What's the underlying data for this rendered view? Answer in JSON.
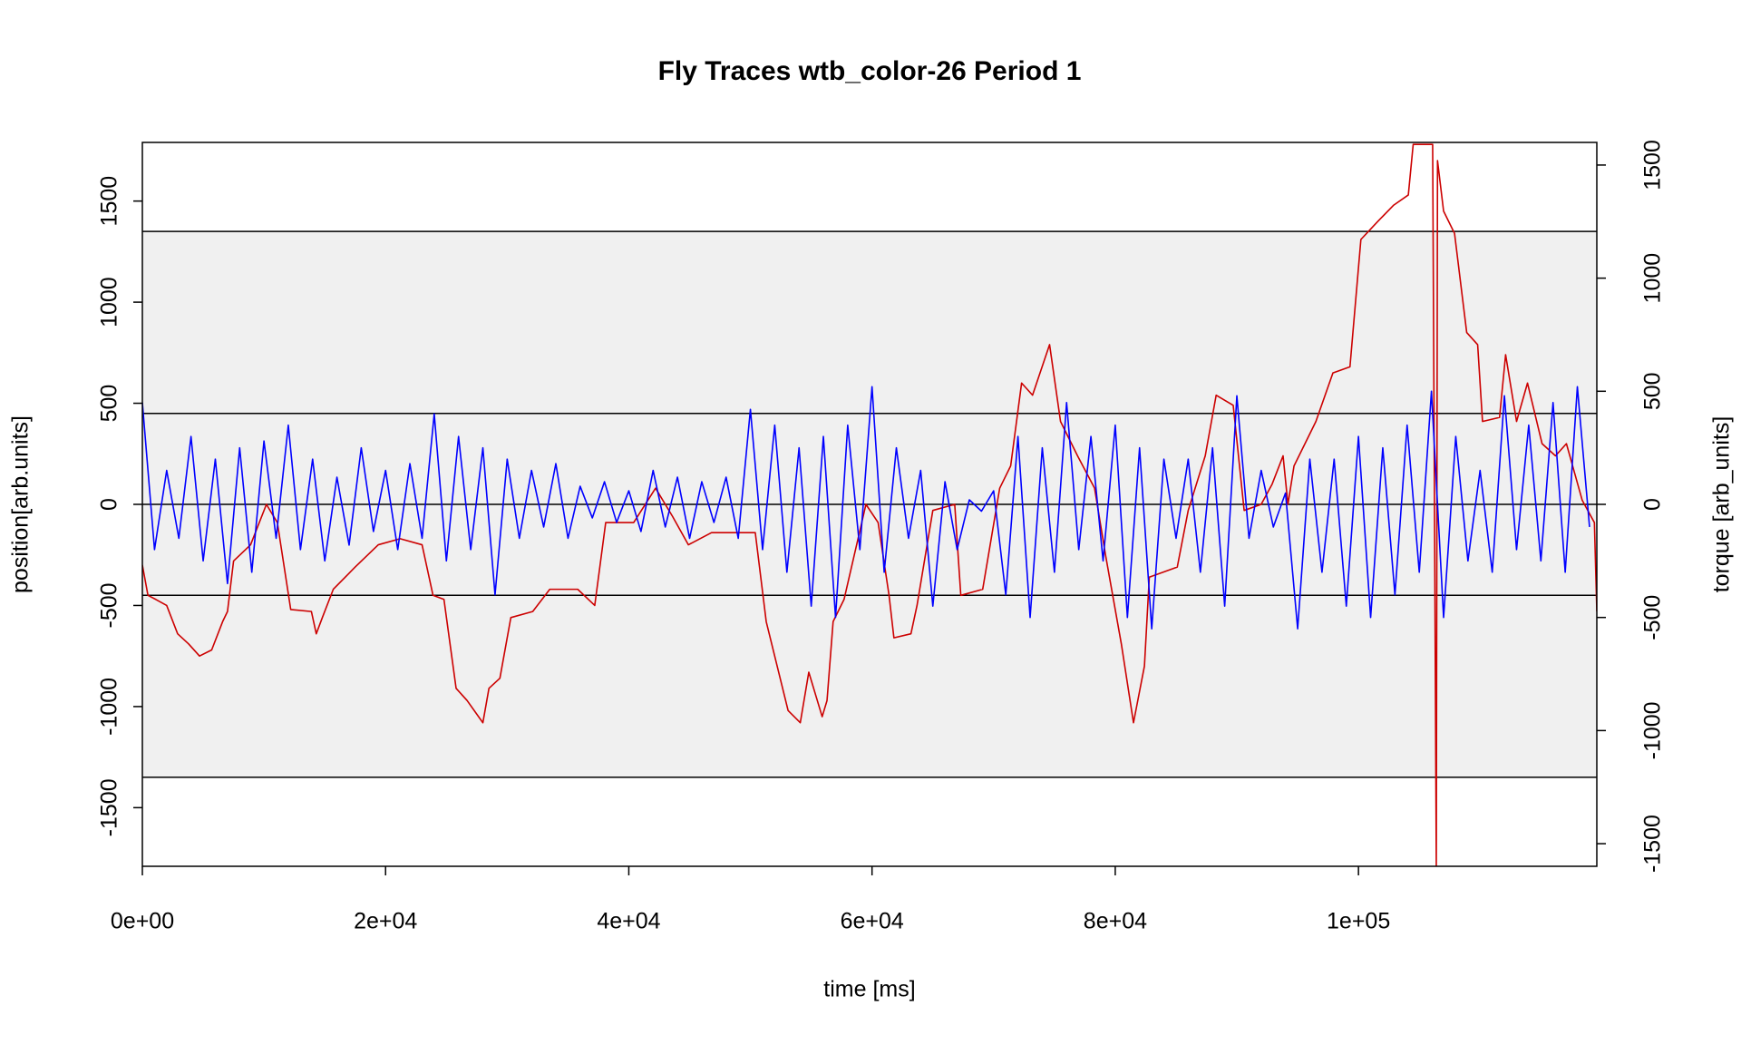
{
  "chart_data": {
    "type": "line",
    "title": "Fly Traces wtb_color-26 Period 1",
    "xlabel": "time [ms]",
    "ylabel": "position[arb.units]",
    "y2label": "torque [arb_units]",
    "xlim": [
      0,
      119600
    ],
    "ylim": [
      -1790,
      1790
    ],
    "y2lim": [
      -1600,
      1600
    ],
    "xticks": [
      {
        "value": 0,
        "label": "0e+00"
      },
      {
        "value": 20000,
        "label": "2e+04"
      },
      {
        "value": 40000,
        "label": "4e+04"
      },
      {
        "value": 60000,
        "label": "6e+04"
      },
      {
        "value": 80000,
        "label": "8e+04"
      },
      {
        "value": 100000,
        "label": "1e+05"
      }
    ],
    "yticks": [
      -1500,
      -1000,
      -500,
      0,
      500,
      1000,
      1500
    ],
    "y2ticks": [
      -1500,
      -1000,
      -500,
      0,
      500,
      1000,
      1500
    ],
    "shaded_band": [
      -1350,
      1350
    ],
    "band_color": "#f0f0f0",
    "hlines": [
      -1350,
      -450,
      0,
      450,
      1350
    ],
    "series": [
      {
        "name": "position",
        "color": "#cc0000",
        "axis": "y",
        "x": [
          0,
          460,
          1100,
          2000,
          2900,
          3800,
          4700,
          5700,
          6600,
          7000,
          7500,
          8900,
          10200,
          11100,
          12200,
          13900,
          14300,
          14800,
          15700,
          17500,
          19400,
          21200,
          23000,
          23900,
          24800,
          25800,
          26700,
          28000,
          28500,
          29400,
          30300,
          32100,
          33500,
          35800,
          37200,
          38100,
          40400,
          42200,
          43600,
          44900,
          46800,
          50400,
          51300,
          52200,
          53100,
          54100,
          54800,
          55900,
          56300,
          56800,
          57700,
          59500,
          60500,
          61400,
          61800,
          63200,
          63700,
          65000,
          66800,
          67300,
          69100,
          70500,
          71400,
          72300,
          73200,
          74600,
          75500,
          76900,
          78300,
          79200,
          80500,
          81500,
          82400,
          82800,
          85100,
          86000,
          87400,
          88300,
          89700,
          90600,
          92000,
          92900,
          93800,
          94200,
          94700,
          96500,
          97900,
          99300,
          100200,
          101600,
          102900,
          104100,
          104500,
          106100,
          106400,
          106500,
          107000,
          107900,
          108900,
          109800,
          110200,
          111600,
          112100,
          113000,
          113900,
          115100,
          116200,
          117100,
          118400,
          119400,
          119600
        ],
        "values": [
          -300,
          -450,
          -470,
          -500,
          -640,
          -690,
          -750,
          -720,
          -580,
          -530,
          -280,
          -200,
          0,
          -90,
          -520,
          -530,
          -640,
          -560,
          -420,
          -310,
          -200,
          -170,
          -200,
          -450,
          -470,
          -910,
          -970,
          -1080,
          -910,
          -860,
          -560,
          -530,
          -420,
          -420,
          -500,
          -90,
          -90,
          80,
          -60,
          -200,
          -140,
          -140,
          -580,
          -800,
          -1020,
          -1080,
          -830,
          -1050,
          -970,
          -580,
          -470,
          0,
          -90,
          -450,
          -660,
          -640,
          -500,
          -30,
          0,
          -450,
          -420,
          80,
          190,
          600,
          540,
          790,
          410,
          240,
          80,
          -250,
          -690,
          -1080,
          -800,
          -360,
          -310,
          -30,
          240,
          540,
          490,
          -30,
          0,
          100,
          240,
          0,
          190,
          410,
          650,
          680,
          1310,
          1400,
          1480,
          1530,
          1780,
          1780,
          -1790,
          1700,
          1450,
          1340,
          850,
          790,
          410,
          430,
          740,
          410,
          600,
          300,
          240,
          300,
          20,
          -90,
          -530
        ]
      },
      {
        "name": "torque",
        "color": "#0000ff",
        "axis": "y2",
        "x": [
          0,
          1000,
          2000,
          3000,
          4000,
          5000,
          6000,
          7000,
          8000,
          9000,
          10000,
          11000,
          12000,
          13000,
          14000,
          15000,
          16000,
          17000,
          18000,
          19000,
          20000,
          21000,
          22000,
          23000,
          24000,
          25000,
          26000,
          27000,
          28000,
          29000,
          30000,
          31000,
          32000,
          33000,
          34000,
          35000,
          36000,
          37000,
          38000,
          39000,
          40000,
          41000,
          42000,
          43000,
          44000,
          45000,
          46000,
          47000,
          48000,
          49000,
          50000,
          51000,
          52000,
          53000,
          54000,
          55000,
          56000,
          57000,
          58000,
          59000,
          60000,
          61000,
          62000,
          63000,
          64000,
          65000,
          66000,
          67000,
          68000,
          69000,
          70000,
          71000,
          72000,
          73000,
          74000,
          75000,
          76000,
          77000,
          78000,
          79000,
          80000,
          81000,
          82000,
          83000,
          84000,
          85000,
          86000,
          87000,
          88000,
          89000,
          90000,
          91000,
          92000,
          93000,
          94000,
          95000,
          96000,
          97000,
          98000,
          99000,
          100000,
          101000,
          102000,
          103000,
          104000,
          105000,
          106000,
          107000,
          108000,
          109000,
          110000,
          111000,
          112000,
          113000,
          114000,
          115000,
          116000,
          117000,
          118000,
          119000
        ],
        "values": [
          450,
          -200,
          150,
          -150,
          300,
          -250,
          200,
          -350,
          250,
          -300,
          280,
          -150,
          350,
          -200,
          200,
          -250,
          120,
          -180,
          250,
          -120,
          150,
          -200,
          180,
          -150,
          400,
          -250,
          300,
          -200,
          250,
          -400,
          200,
          -150,
          150,
          -100,
          180,
          -150,
          80,
          -60,
          100,
          -80,
          60,
          -120,
          150,
          -100,
          120,
          -150,
          100,
          -80,
          120,
          -150,
          420,
          -200,
          350,
          -300,
          250,
          -450,
          300,
          -500,
          350,
          -200,
          520,
          -300,
          250,
          -150,
          150,
          -450,
          100,
          -200,
          20,
          -30,
          60,
          -400,
          300,
          -500,
          250,
          -300,
          450,
          -200,
          300,
          -250,
          350,
          -500,
          250,
          -550,
          200,
          -150,
          200,
          -300,
          250,
          -450,
          480,
          -150,
          150,
          -100,
          50,
          -550,
          200,
          -300,
          200,
          -450,
          300,
          -500,
          250,
          -400,
          350,
          -300,
          500,
          -500,
          300,
          -250,
          150,
          -300,
          480,
          -200,
          350,
          -250,
          450,
          -300,
          520,
          -100
        ]
      }
    ]
  }
}
